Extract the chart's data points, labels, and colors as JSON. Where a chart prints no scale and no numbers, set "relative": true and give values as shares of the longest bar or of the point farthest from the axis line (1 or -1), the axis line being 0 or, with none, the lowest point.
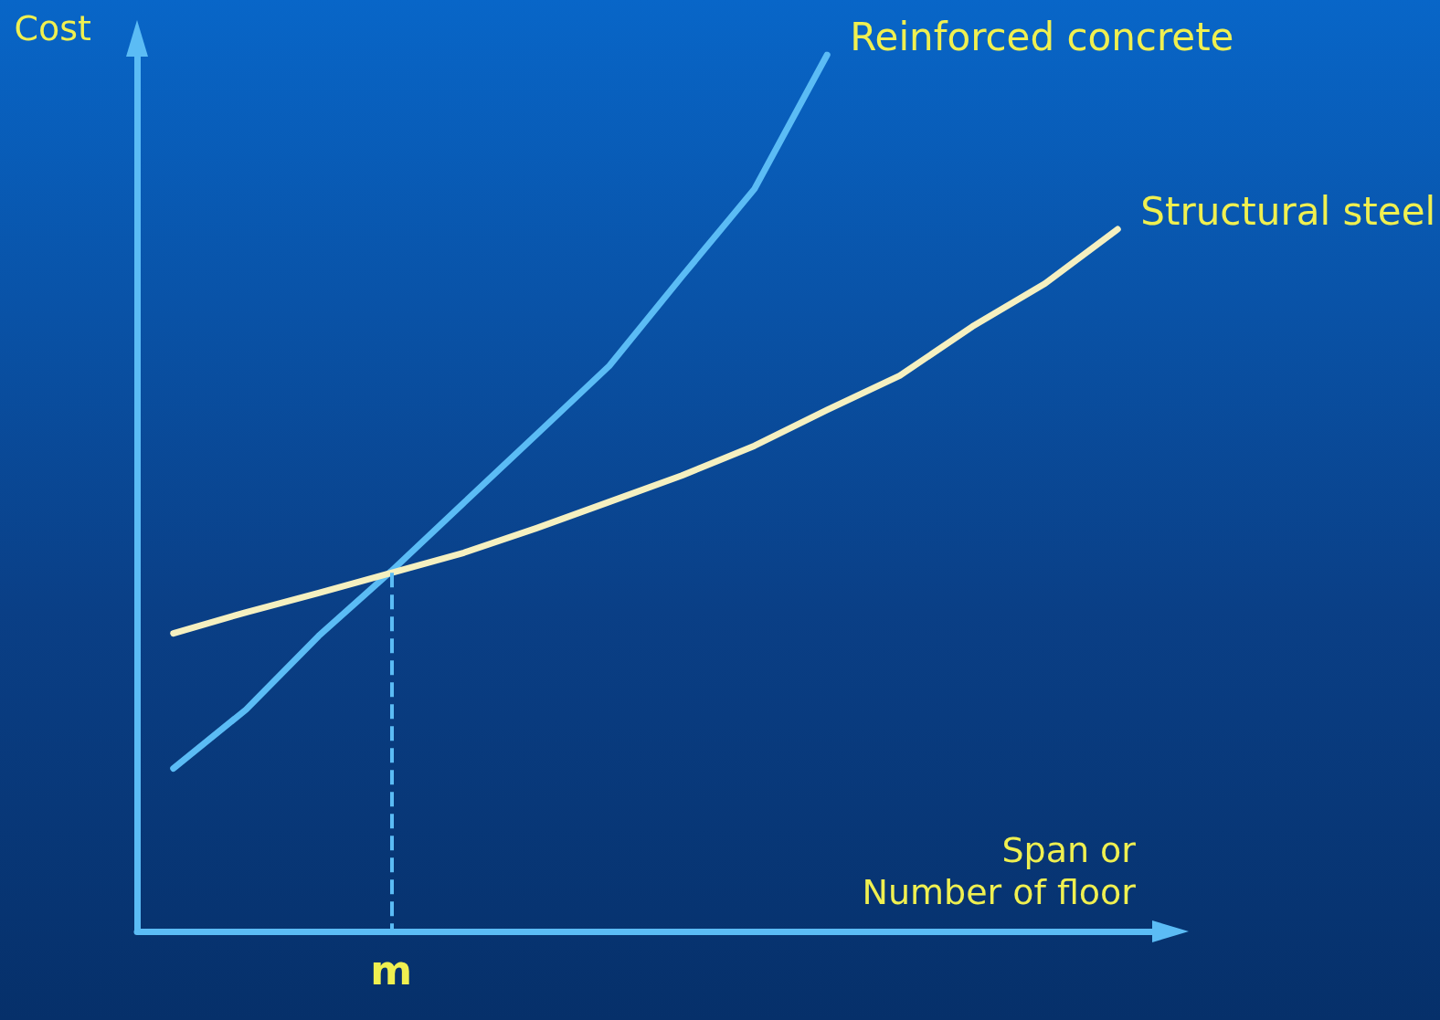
{
  "chart_data": {
    "type": "line",
    "relative": true,
    "xlabel": "Span or\nNumber of floor",
    "ylabel": "Cost",
    "categories": [
      null,
      null,
      null,
      null,
      null,
      null,
      null,
      null,
      null,
      null,
      null,
      null,
      null,
      null
    ],
    "series": [
      {
        "name": "Reinforced concrete",
        "color": "#5bbcf5",
        "values": [
          0.186,
          0.253,
          0.337,
          0.411,
          0.489,
          0.567,
          0.645,
          0.747,
          0.847,
          1,
          null,
          null,
          null,
          null
        ]
      },
      {
        "name": "Structural steel",
        "color": "#f5f0c0",
        "values": [
          0.34,
          0.364,
          0.386,
          0.409,
          0.432,
          0.46,
          0.49,
          0.52,
          0.554,
          0.595,
          0.634,
          0.69,
          0.739,
          0.801
        ]
      }
    ],
    "annotations": [
      "m"
    ],
    "legend": false,
    "grid": false,
    "marker": "none",
    "line_style": "solid"
  }
}
